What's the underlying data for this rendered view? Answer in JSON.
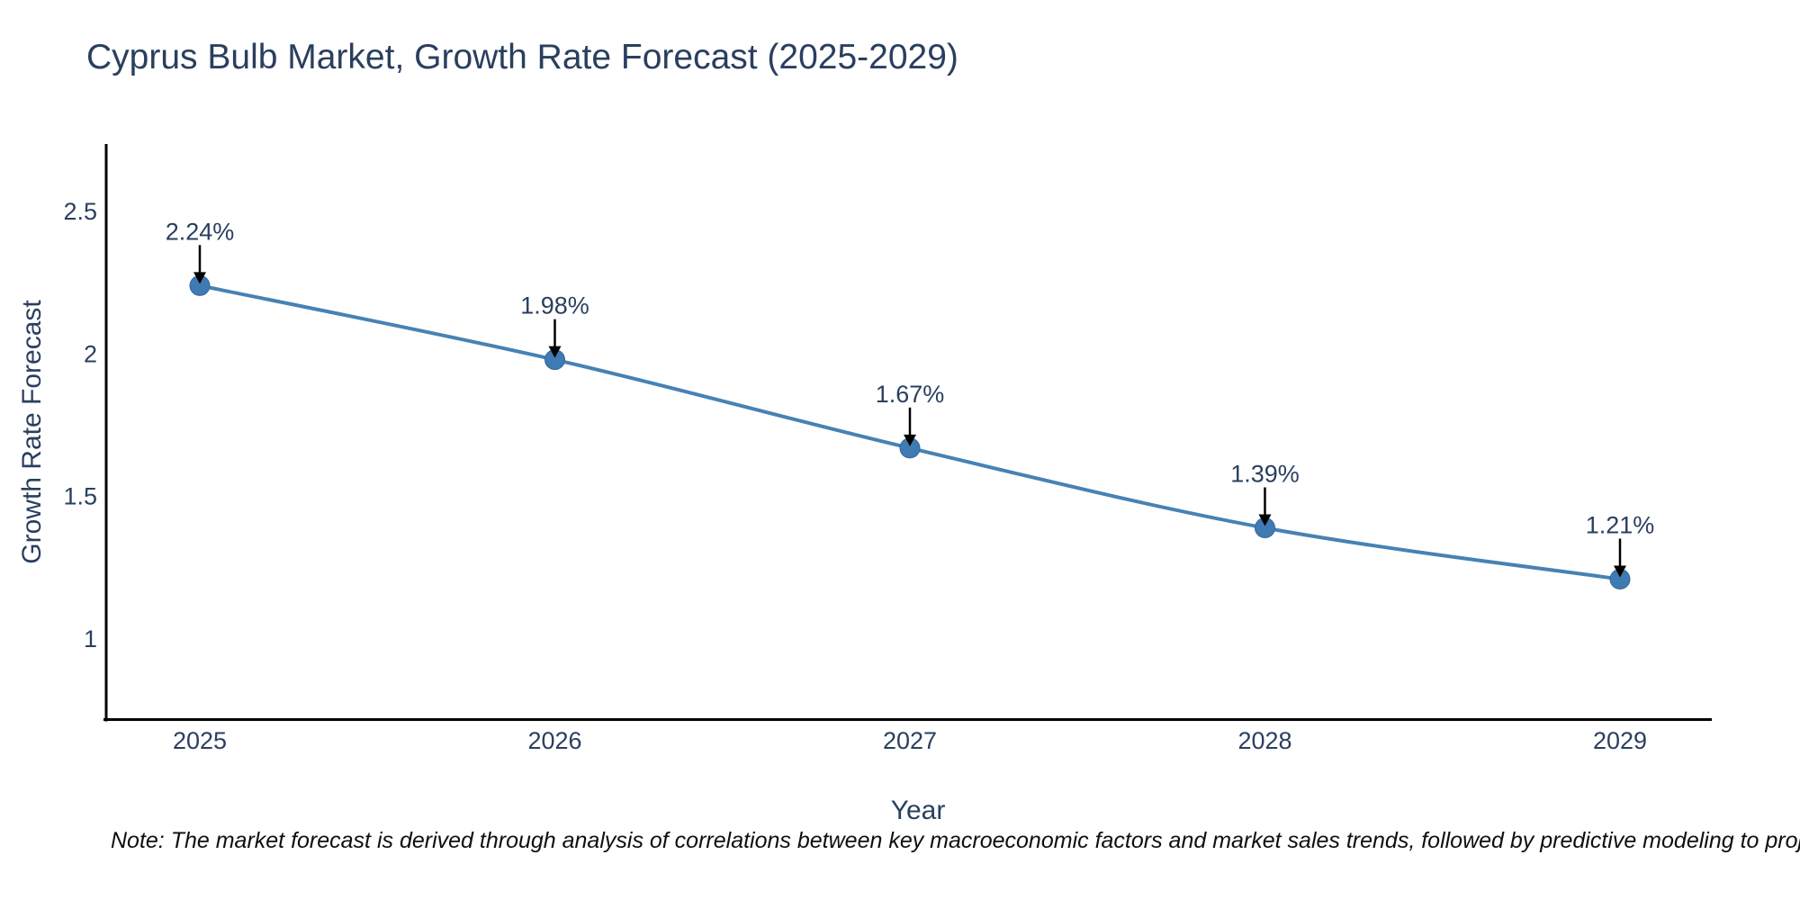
{
  "chart": {
    "title": "Cyprus Bulb Market, Growth Rate Forecast (2025-2029)",
    "note": "Note: The market forecast is derived through analysis of correlations between key macroeconomic factors and market sales trends, followed by predictive modeling to project future sales",
    "colors": {
      "line": "#4682b4",
      "marker_fill": "#3f7ab2",
      "marker_edge": "#34689a",
      "axis_line": "#000000",
      "label_text": "#2a3f5f",
      "annotation_arrow": "#000000",
      "note_text": "#0f0f0f",
      "background": "#ffffff"
    }
  },
  "chart_data": {
    "type": "line",
    "title": "Cyprus Bulb Market, Growth Rate Forecast (2025-2029)",
    "xlabel": "Year",
    "ylabel": "Growth Rate Forecast",
    "categories": [
      "2025",
      "2026",
      "2027",
      "2028",
      "2029"
    ],
    "series": [
      {
        "name": "Growth Rate Forecast",
        "values": [
          2.24,
          1.98,
          1.67,
          1.39,
          1.21
        ],
        "point_labels": [
          "2.24%",
          "1.98%",
          "1.67%",
          "1.39%",
          "1.21%"
        ]
      }
    ],
    "yticks": [
      1,
      1.5,
      2,
      2.5
    ],
    "ylim": [
      0.72,
      2.74
    ],
    "grid": false,
    "legend": null,
    "marker": "circle",
    "line_shape": "spline",
    "annotations": "each point labeled with its percentage and a downward black arrow"
  }
}
